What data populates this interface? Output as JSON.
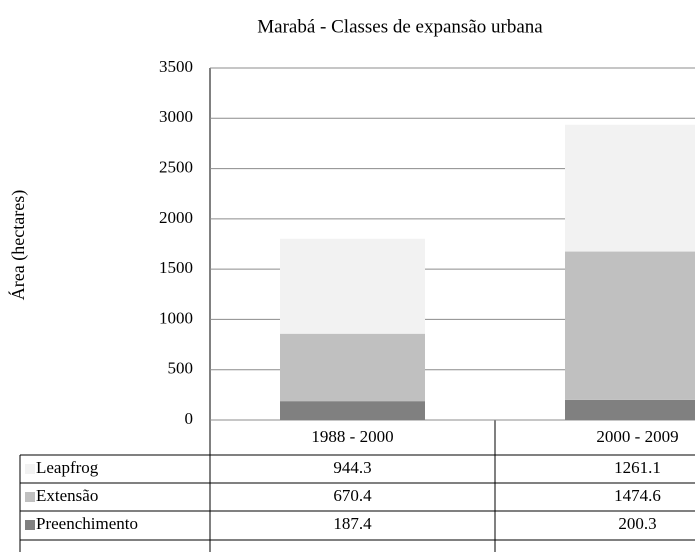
{
  "chart_data": {
    "type": "stacked_bar",
    "title": "Marabá - Classes de expansão urbana",
    "y_label": "Área (hectares)",
    "categories": [
      "1988 - 2000",
      "2000 - 2009"
    ],
    "series": [
      {
        "name": "Leapfrog",
        "color": "#f2f2f2",
        "values": [
          944.3,
          1261.1
        ]
      },
      {
        "name": "Extensão",
        "color": "#c0c0c0",
        "values": [
          670.4,
          1474.6
        ]
      },
      {
        "name": "Preenchimento",
        "color": "#808080",
        "values": [
          187.4,
          200.3
        ]
      }
    ],
    "ylim": [
      0,
      3500
    ],
    "yticks": [
      0,
      500,
      1000,
      1500,
      2000,
      2500,
      3000,
      3500
    ],
    "grid": true
  }
}
